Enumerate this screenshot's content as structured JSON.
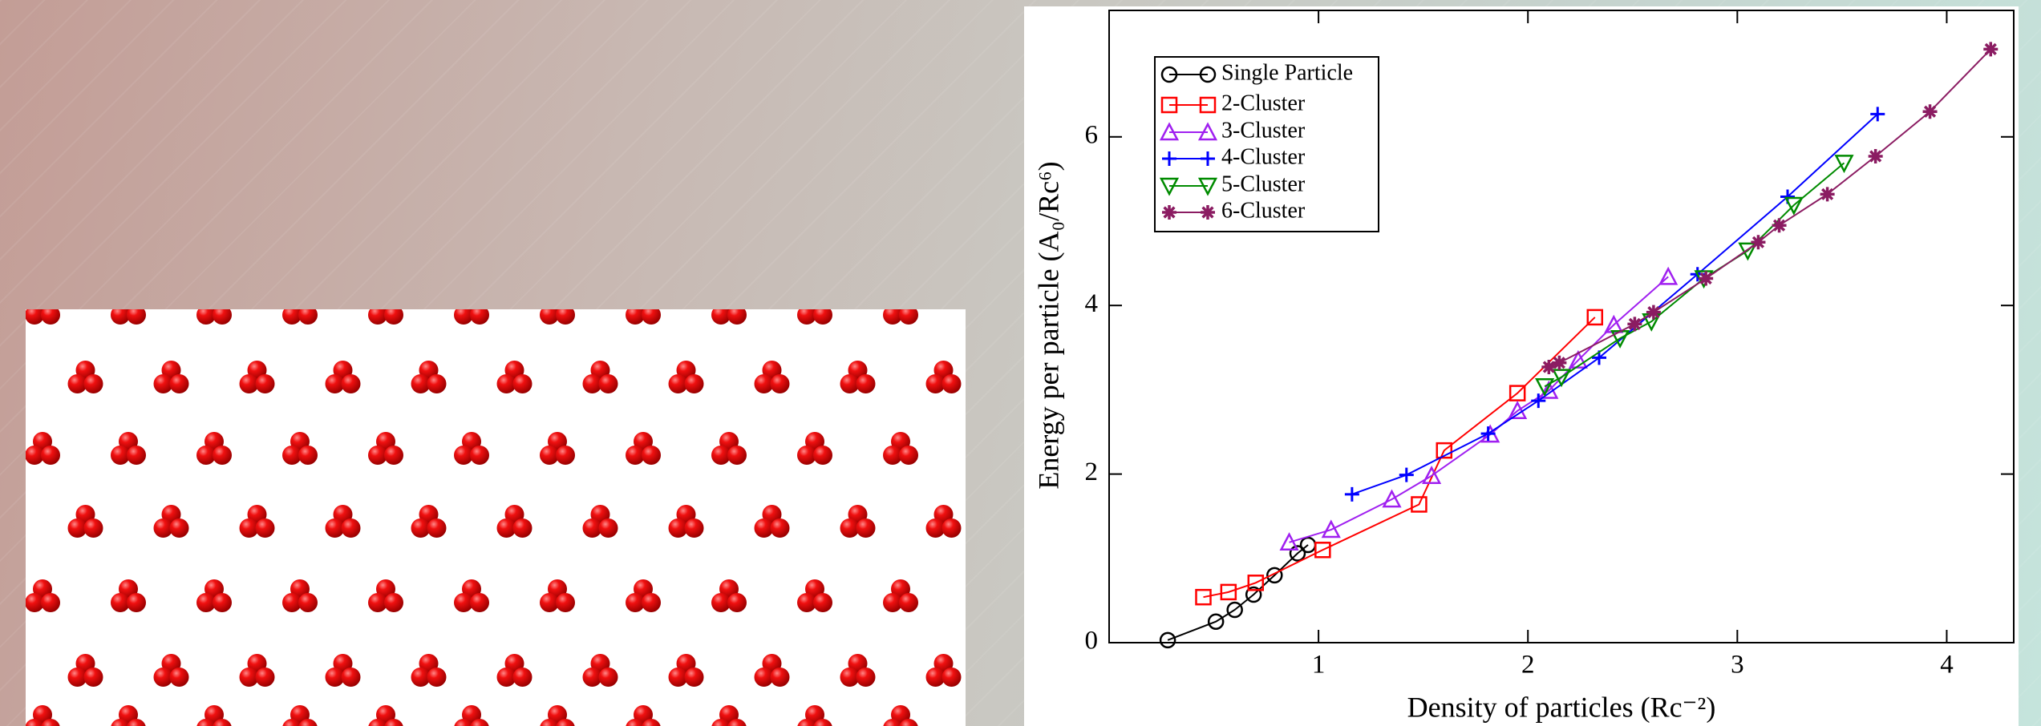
{
  "chart_data": {
    "type": "line",
    "xlabel": "Density of particles (Rc⁻²)",
    "ylabel": "Energy per particle (A₀/Rc⁶)",
    "xlim": [
      0,
      4.32
    ],
    "ylim": [
      0,
      7.5
    ],
    "xticks": [
      1,
      2,
      3,
      4
    ],
    "yticks": [
      0,
      2,
      4,
      6
    ],
    "legend": "upper left",
    "series": [
      {
        "name": "Single Particle",
        "color": "#000000",
        "marker": "circle",
        "x": [
          0.28,
          0.51,
          0.6,
          0.69,
          0.79,
          0.9,
          0.95
        ],
        "values": [
          0.03,
          0.25,
          0.39,
          0.57,
          0.8,
          1.06,
          1.16
        ]
      },
      {
        "name": "2-Cluster",
        "color": "#ff0000",
        "marker": "square",
        "x": [
          0.45,
          0.57,
          0.7,
          1.02,
          1.48,
          1.6,
          1.95,
          2.32
        ],
        "values": [
          0.54,
          0.6,
          0.71,
          1.1,
          1.64,
          2.28,
          2.96,
          3.86
        ]
      },
      {
        "name": "3-Cluster",
        "color": "#a020f0",
        "marker": "triangle-up",
        "x": [
          0.86,
          1.06,
          1.35,
          1.54,
          1.82,
          1.95,
          2.1,
          2.24,
          2.41,
          2.67
        ],
        "values": [
          1.19,
          1.34,
          1.7,
          1.98,
          2.47,
          2.75,
          2.99,
          3.35,
          3.77,
          4.34
        ]
      },
      {
        "name": "4-Cluster",
        "color": "#0000ff",
        "marker": "plus",
        "x": [
          1.16,
          1.42,
          1.81,
          2.05,
          2.34,
          2.81,
          3.24,
          3.67
        ],
        "values": [
          1.76,
          1.99,
          2.48,
          2.87,
          3.38,
          4.37,
          5.29,
          6.27
        ]
      },
      {
        "name": "5-Cluster",
        "color": "#008b00",
        "marker": "triangle-down",
        "x": [
          2.08,
          2.16,
          2.44,
          2.59,
          2.84,
          3.05,
          3.27,
          3.51
        ],
        "values": [
          3.04,
          3.15,
          3.61,
          3.81,
          4.32,
          4.65,
          5.19,
          5.69
        ]
      },
      {
        "name": "6-Cluster",
        "color": "#8b1c62",
        "marker": "star",
        "x": [
          2.1,
          2.15,
          2.51,
          2.6,
          2.85,
          3.1,
          3.2,
          3.43,
          3.66,
          3.92,
          4.21
        ],
        "values": [
          3.27,
          3.32,
          3.78,
          3.92,
          4.32,
          4.75,
          4.95,
          5.32,
          5.77,
          6.3,
          7.04
        ]
      }
    ]
  }
}
